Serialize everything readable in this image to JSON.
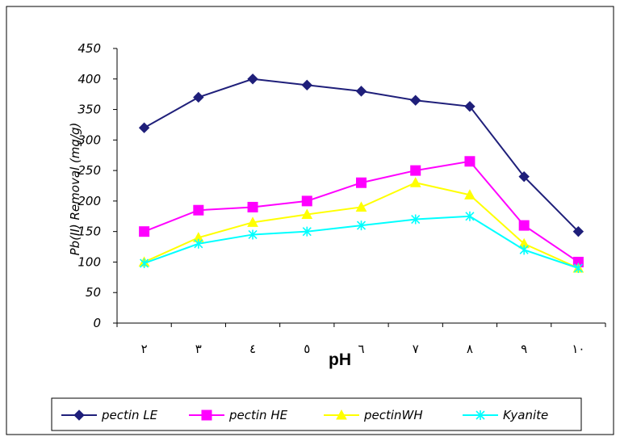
{
  "chart_data": {
    "type": "line",
    "title": "",
    "xlabel": "pH",
    "ylabel": "Pb(II) Removal  (mg/g)",
    "categories": [
      "٢",
      "٣",
      "٤",
      "٥",
      "٦",
      "٧",
      "٨",
      "٩",
      "١٠"
    ],
    "yticks": [
      "0",
      "50",
      "100",
      "150",
      "200",
      "250",
      "300",
      "350",
      "400",
      "450"
    ],
    "ylim": [
      0,
      450
    ],
    "grid": false,
    "legend_position": "bottom",
    "series": [
      {
        "name": "pectin LE",
        "color": "#1F1F7A",
        "marker": "diamond",
        "values": [
          320,
          370,
          400,
          390,
          380,
          365,
          355,
          240,
          150
        ]
      },
      {
        "name": "pectin HE",
        "color": "#FF00FF",
        "marker": "square",
        "values": [
          150,
          185,
          190,
          200,
          230,
          250,
          265,
          160,
          100
        ]
      },
      {
        "name": "pectinWH",
        "color": "#FFFF00",
        "marker": "triangle",
        "values": [
          100,
          140,
          165,
          178,
          190,
          230,
          210,
          130,
          90
        ]
      },
      {
        "name": "Kyanite",
        "color": "#00FFFF",
        "marker": "x",
        "values": [
          98,
          130,
          145,
          150,
          160,
          170,
          175,
          120,
          90
        ]
      }
    ]
  }
}
